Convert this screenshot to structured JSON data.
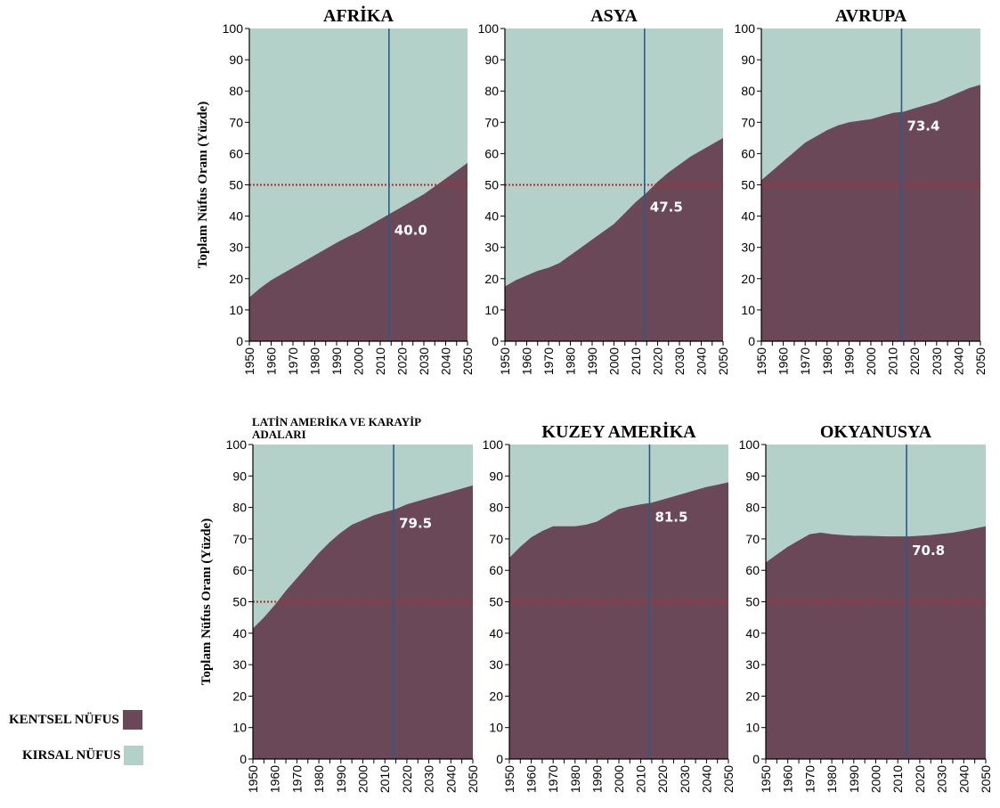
{
  "chart_data": [
    {
      "type": "area",
      "title": "AFRİKA",
      "ylabel": "Toplam Nüfus Oranı (Yüzde)",
      "xlabel": "",
      "x": [
        1950,
        1955,
        1960,
        1965,
        1970,
        1975,
        1980,
        1985,
        1990,
        1995,
        2000,
        2005,
        2010,
        2015,
        2020,
        2025,
        2030,
        2035,
        2040,
        2045,
        2050
      ],
      "series": [
        {
          "name": "KENTSEL NÜFUS",
          "values": [
            14,
            17,
            19.5,
            21.5,
            23.5,
            25.5,
            27.5,
            29.5,
            31.5,
            33.3,
            35,
            37,
            39,
            41,
            43,
            45,
            47,
            49.5,
            52,
            54.5,
            57
          ]
        },
        {
          "name": "KIRSAL NÜFUS",
          "values": [
            86,
            83,
            80.5,
            78.5,
            76.5,
            74.5,
            72.5,
            70.5,
            68.5,
            66.7,
            65,
            63,
            61,
            59,
            57,
            55,
            53,
            50.5,
            48,
            45.5,
            43
          ]
        }
      ],
      "marker_year": 2014,
      "marker_label": "40.0",
      "reference_line": 50,
      "ylim": [
        0,
        100
      ],
      "xlim": [
        1950,
        2050
      ]
    },
    {
      "type": "area",
      "title": "ASYA",
      "ylabel": "",
      "xlabel": "",
      "x": [
        1950,
        1955,
        1960,
        1965,
        1970,
        1975,
        1980,
        1985,
        1990,
        1995,
        2000,
        2005,
        2010,
        2015,
        2020,
        2025,
        2030,
        2035,
        2040,
        2045,
        2050
      ],
      "series": [
        {
          "name": "KENTSEL NÜFUS",
          "values": [
            17.5,
            19.5,
            21,
            22.5,
            23.5,
            25,
            27.5,
            30,
            32.5,
            35,
            37.5,
            41,
            44.5,
            47.5,
            51,
            54,
            56.5,
            59,
            61,
            63,
            65
          ]
        },
        {
          "name": "KIRSAL NÜFUS",
          "values": [
            82.5,
            80.5,
            79,
            77.5,
            76.5,
            75,
            72.5,
            70,
            67.5,
            65,
            62.5,
            59,
            55.5,
            52.5,
            49,
            46,
            43.5,
            41,
            39,
            37,
            35
          ]
        }
      ],
      "marker_year": 2014,
      "marker_label": "47.5",
      "reference_line": 50,
      "ylim": [
        0,
        100
      ],
      "xlim": [
        1950,
        2050
      ]
    },
    {
      "type": "area",
      "title": "AVRUPA",
      "ylabel": "",
      "xlabel": "",
      "x": [
        1950,
        1955,
        1960,
        1965,
        1970,
        1975,
        1980,
        1985,
        1990,
        1995,
        2000,
        2005,
        2010,
        2015,
        2020,
        2025,
        2030,
        2035,
        2040,
        2045,
        2050
      ],
      "series": [
        {
          "name": "KENTSEL NÜFUS",
          "values": [
            51.5,
            54.5,
            57.5,
            60.5,
            63.5,
            65.5,
            67.5,
            69,
            70,
            70.5,
            71,
            72,
            73,
            73.4,
            74.5,
            75.5,
            76.5,
            78,
            79.5,
            81,
            82
          ]
        },
        {
          "name": "KIRSAL NÜFUS",
          "values": [
            48.5,
            45.5,
            42.5,
            39.5,
            36.5,
            34.5,
            32.5,
            31,
            30,
            29.5,
            29,
            28,
            27,
            26.6,
            25.5,
            24.5,
            23.5,
            22,
            20.5,
            19,
            18
          ]
        }
      ],
      "marker_year": 2014,
      "marker_label": "73.4",
      "reference_line": 50,
      "ylim": [
        0,
        100
      ],
      "xlim": [
        1950,
        2050
      ]
    },
    {
      "type": "area",
      "title": "LATİN AMERİKA VE KARAYİP ADALARI",
      "ylabel": "Toplam Nüfus Oranı (Yüzde)",
      "xlabel": "",
      "x": [
        1950,
        1955,
        1960,
        1965,
        1970,
        1975,
        1980,
        1985,
        1990,
        1995,
        2000,
        2005,
        2010,
        2015,
        2020,
        2025,
        2030,
        2035,
        2040,
        2045,
        2050
      ],
      "series": [
        {
          "name": "KENTSEL NÜFUS",
          "values": [
            41.5,
            45,
            49,
            53.5,
            57.5,
            61.5,
            65.5,
            69,
            72,
            74.5,
            76,
            77.5,
            78.5,
            79.5,
            81,
            82,
            83,
            84,
            85,
            86,
            87
          ]
        },
        {
          "name": "KIRSAL NÜFUS",
          "values": [
            58.5,
            55,
            51,
            46.5,
            42.5,
            38.5,
            34.5,
            31,
            28,
            25.5,
            24,
            22.5,
            21.5,
            20.5,
            19,
            18,
            17,
            16,
            15,
            14,
            13
          ]
        }
      ],
      "marker_year": 2014,
      "marker_label": "79.5",
      "reference_line": 50,
      "ylim": [
        0,
        100
      ],
      "xlim": [
        1950,
        2050
      ]
    },
    {
      "type": "area",
      "title": "KUZEY AMERİKA",
      "ylabel": "",
      "xlabel": "",
      "x": [
        1950,
        1955,
        1960,
        1965,
        1970,
        1975,
        1980,
        1985,
        1990,
        1995,
        2000,
        2005,
        2010,
        2015,
        2020,
        2025,
        2030,
        2035,
        2040,
        2045,
        2050
      ],
      "series": [
        {
          "name": "KENTSEL NÜFUS",
          "values": [
            64,
            67.5,
            70.5,
            72.5,
            74,
            74,
            74,
            74.5,
            75.5,
            77.5,
            79.5,
            80.3,
            81,
            81.5,
            82.5,
            83.5,
            84.5,
            85.5,
            86.5,
            87.2,
            88
          ]
        },
        {
          "name": "KIRSAL NÜFUS",
          "values": [
            36,
            32.5,
            29.5,
            27.5,
            26,
            26,
            26,
            25.5,
            24.5,
            22.5,
            20.5,
            19.7,
            19,
            18.5,
            17.5,
            16.5,
            15.5,
            14.5,
            13.5,
            12.8,
            12
          ]
        }
      ],
      "marker_year": 2014,
      "marker_label": "81.5",
      "reference_line": 50,
      "ylim": [
        0,
        100
      ],
      "xlim": [
        1950,
        2050
      ]
    },
    {
      "type": "area",
      "title": "OKYANUSYA",
      "ylabel": "",
      "xlabel": "",
      "x": [
        1950,
        1955,
        1960,
        1965,
        1970,
        1975,
        1980,
        1985,
        1990,
        1995,
        2000,
        2005,
        2010,
        2015,
        2020,
        2025,
        2030,
        2035,
        2040,
        2045,
        2050
      ],
      "series": [
        {
          "name": "KENTSEL NÜFUS",
          "values": [
            62.5,
            65,
            67.5,
            69.5,
            71.5,
            72,
            71.5,
            71.2,
            71,
            71,
            70.9,
            70.8,
            70.8,
            70.8,
            71,
            71.2,
            71.6,
            72,
            72.6,
            73.3,
            74
          ]
        },
        {
          "name": "KIRSAL NÜFUS",
          "values": [
            37.5,
            35,
            32.5,
            30.5,
            28.5,
            28,
            28.5,
            28.8,
            29,
            29,
            29.1,
            29.2,
            29.2,
            29.2,
            29,
            28.8,
            28.4,
            28,
            27.4,
            26.7,
            26
          ]
        }
      ],
      "marker_year": 2014,
      "marker_label": "70.8",
      "reference_line": 50,
      "ylim": [
        0,
        100
      ],
      "xlim": [
        1950,
        2050
      ]
    }
  ],
  "y_ticks": [
    0,
    10,
    20,
    30,
    40,
    50,
    60,
    70,
    80,
    90,
    100
  ],
  "x_ticks": [
    1950,
    1960,
    1970,
    1980,
    1990,
    2000,
    2010,
    2020,
    2030,
    2040,
    2050
  ],
  "legend": {
    "urban_label": "KENTSEL NÜFUS",
    "rural_label": "KIRSAL NÜFUS",
    "urban_color": "#6b4858",
    "rural_color": "#b3d1c8"
  },
  "colors": {
    "urban": "#6b4858",
    "rural": "#b3d1c8",
    "marker_line": "#2c5a8a",
    "reference_line": "#c0262b"
  }
}
